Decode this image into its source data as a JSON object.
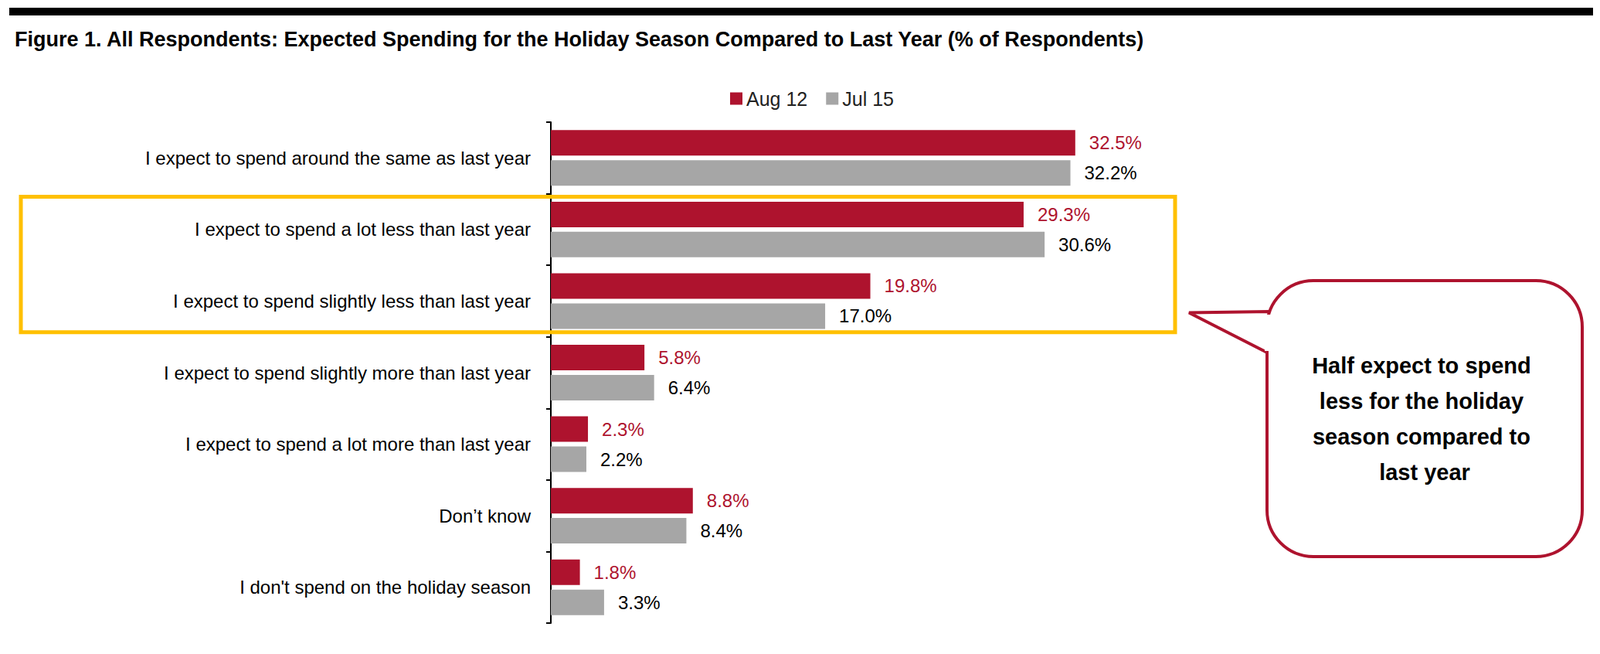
{
  "chart_data": {
    "type": "bar",
    "title": "Figure 1. All Respondents: Expected Spending for the Holiday Season Compared to Last Year (% of Respondents)",
    "orientation": "horizontal",
    "categories": [
      "I expect to spend around the same as last year",
      "I expect to spend a lot less than last year",
      "I expect to spend slightly less than last year",
      "I expect to spend slightly more than last year",
      "I expect to spend a lot more than last year",
      "Don’t know",
      "I don't spend on the holiday season"
    ],
    "series": [
      {
        "name": "Aug 12",
        "color": "#ae132e",
        "values": [
          32.5,
          29.3,
          19.8,
          5.8,
          2.3,
          8.8,
          1.8
        ],
        "value_labels": [
          "32.5%",
          "29.3%",
          "19.8%",
          "5.8%",
          "2.3%",
          "8.8%",
          "1.8%"
        ]
      },
      {
        "name": "Jul 15",
        "color": "#a6a6a6",
        "values": [
          32.2,
          30.6,
          17.0,
          6.4,
          2.2,
          8.4,
          3.3
        ],
        "value_labels": [
          "32.2%",
          "30.6%",
          "17.0%",
          "6.4%",
          "2.2%",
          "8.4%",
          "3.3%"
        ]
      }
    ],
    "xlim": [
      0,
      35
    ],
    "grid": false,
    "legend": "top",
    "data_labels": true,
    "tick_labels": "y",
    "annotations": [
      {
        "text": "Half expect to spend less for the holiday season compared to last year",
        "categories": [
          "I expect to spend a lot less than last year",
          "I expect to spend slightly less than last year"
        ]
      }
    ]
  }
}
